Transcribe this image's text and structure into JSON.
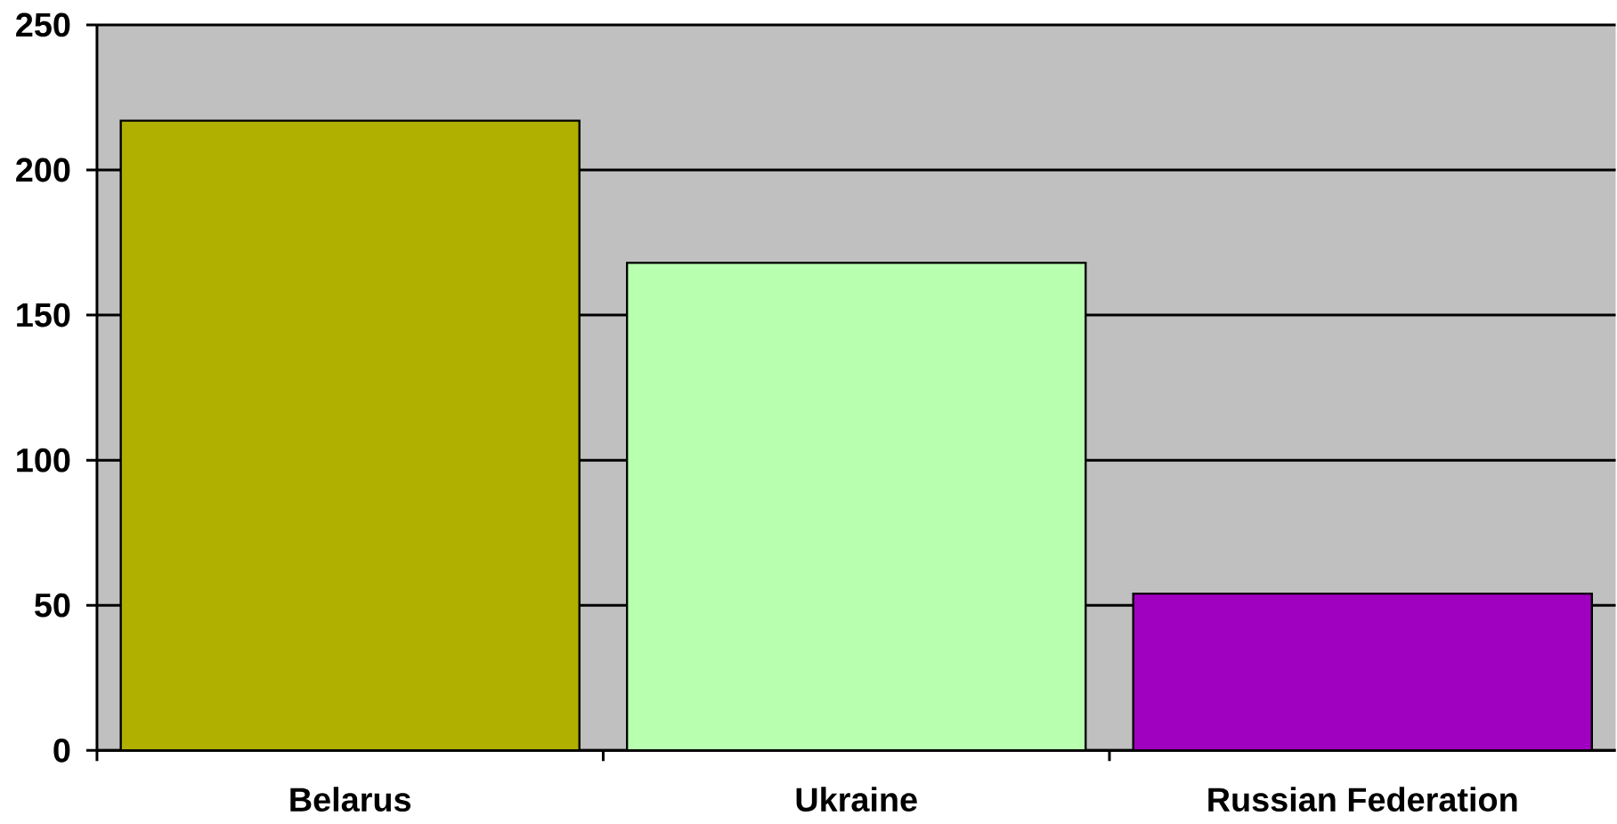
{
  "chart_data": {
    "type": "bar",
    "categories": [
      "Belarus",
      "Ukraine",
      "Russian Federation"
    ],
    "values": [
      217,
      168,
      54
    ],
    "colors": [
      "#b0b000",
      "#b8ffb0",
      "#a000c0"
    ],
    "ylim": [
      0,
      250
    ],
    "yticks": [
      0,
      50,
      100,
      150,
      200,
      250
    ],
    "grid": "y"
  }
}
